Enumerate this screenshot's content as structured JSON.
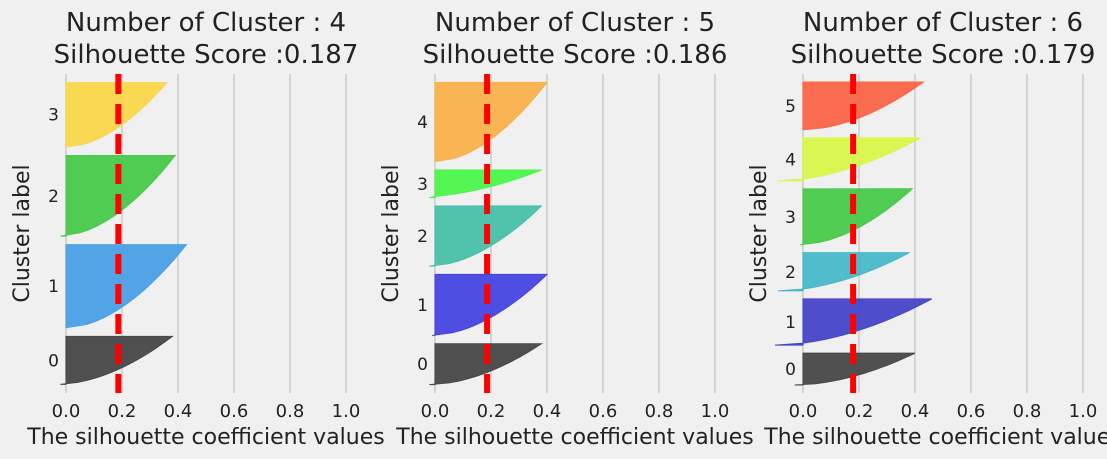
{
  "chart_data": [
    {
      "type": "area",
      "title": "Number of Cluster : 4",
      "subtitle": "Silhouette Score :0.187",
      "xlabel": "The silhouette coefficient values",
      "ylabel": "Cluster label",
      "xlim": [
        -0.02,
        1.0
      ],
      "xticks": [
        "0.0",
        "0.2",
        "0.4",
        "0.6",
        "0.8",
        "1.0"
      ],
      "grid": true,
      "silhouette_score": 0.187,
      "clusters": [
        {
          "label": "0",
          "size": 56,
          "min": -0.03,
          "max": 0.38,
          "color": "#474747"
        },
        {
          "label": "1",
          "size": 97,
          "min": 0.0,
          "max": 0.43,
          "color": "#4a9fe5"
        },
        {
          "label": "2",
          "size": 94,
          "min": -0.02,
          "max": 0.39,
          "color": "#48c94a"
        },
        {
          "label": "3",
          "size": 75,
          "min": 0.0,
          "max": 0.36,
          "color": "#f9d64a"
        }
      ]
    },
    {
      "type": "area",
      "title": "Number of Cluster : 5",
      "subtitle": "Silhouette Score :0.186",
      "xlabel": "The silhouette coefficient values",
      "ylabel": "Cluster label",
      "xlim": [
        -0.02,
        1.0
      ],
      "xticks": [
        "0.0",
        "0.2",
        "0.4",
        "0.6",
        "0.8",
        "1.0"
      ],
      "grid": true,
      "silhouette_score": 0.186,
      "clusters": [
        {
          "label": "0",
          "size": 49,
          "min": -0.02,
          "max": 0.38,
          "color": "#474747"
        },
        {
          "label": "1",
          "size": 73,
          "min": -0.01,
          "max": 0.4,
          "color": "#4444e0"
        },
        {
          "label": "2",
          "size": 72,
          "min": -0.02,
          "max": 0.38,
          "color": "#48bfa8"
        },
        {
          "label": "3",
          "size": 33,
          "min": -0.08,
          "max": 0.38,
          "color": "#4af54a"
        },
        {
          "label": "4",
          "size": 95,
          "min": 0.0,
          "max": 0.4,
          "color": "#f9b04a"
        }
      ]
    },
    {
      "type": "area",
      "title": "Number of Cluster : 6",
      "subtitle": "Silhouette Score :0.179",
      "xlabel": "The silhouette coefficient values",
      "ylabel": "Cluster label",
      "xlim": [
        -0.1,
        1.0
      ],
      "xticks": [
        "0.0",
        "0.2",
        "0.4",
        "0.6",
        "0.8",
        "1.0"
      ],
      "grid": true,
      "silhouette_score": 0.179,
      "clusters": [
        {
          "label": "0",
          "size": 40,
          "min": -0.03,
          "max": 0.4,
          "color": "#474747"
        },
        {
          "label": "1",
          "size": 58,
          "min": -0.1,
          "max": 0.46,
          "color": "#4444c8"
        },
        {
          "label": "2",
          "size": 48,
          "min": -0.09,
          "max": 0.38,
          "color": "#48b8c8"
        },
        {
          "label": "3",
          "size": 70,
          "min": -0.01,
          "max": 0.39,
          "color": "#48c94a"
        },
        {
          "label": "4",
          "size": 54,
          "min": -0.09,
          "max": 0.42,
          "color": "#d8f54a"
        },
        {
          "label": "5",
          "size": 60,
          "min": 0.0,
          "max": 0.43,
          "color": "#fa6446"
        }
      ]
    }
  ]
}
